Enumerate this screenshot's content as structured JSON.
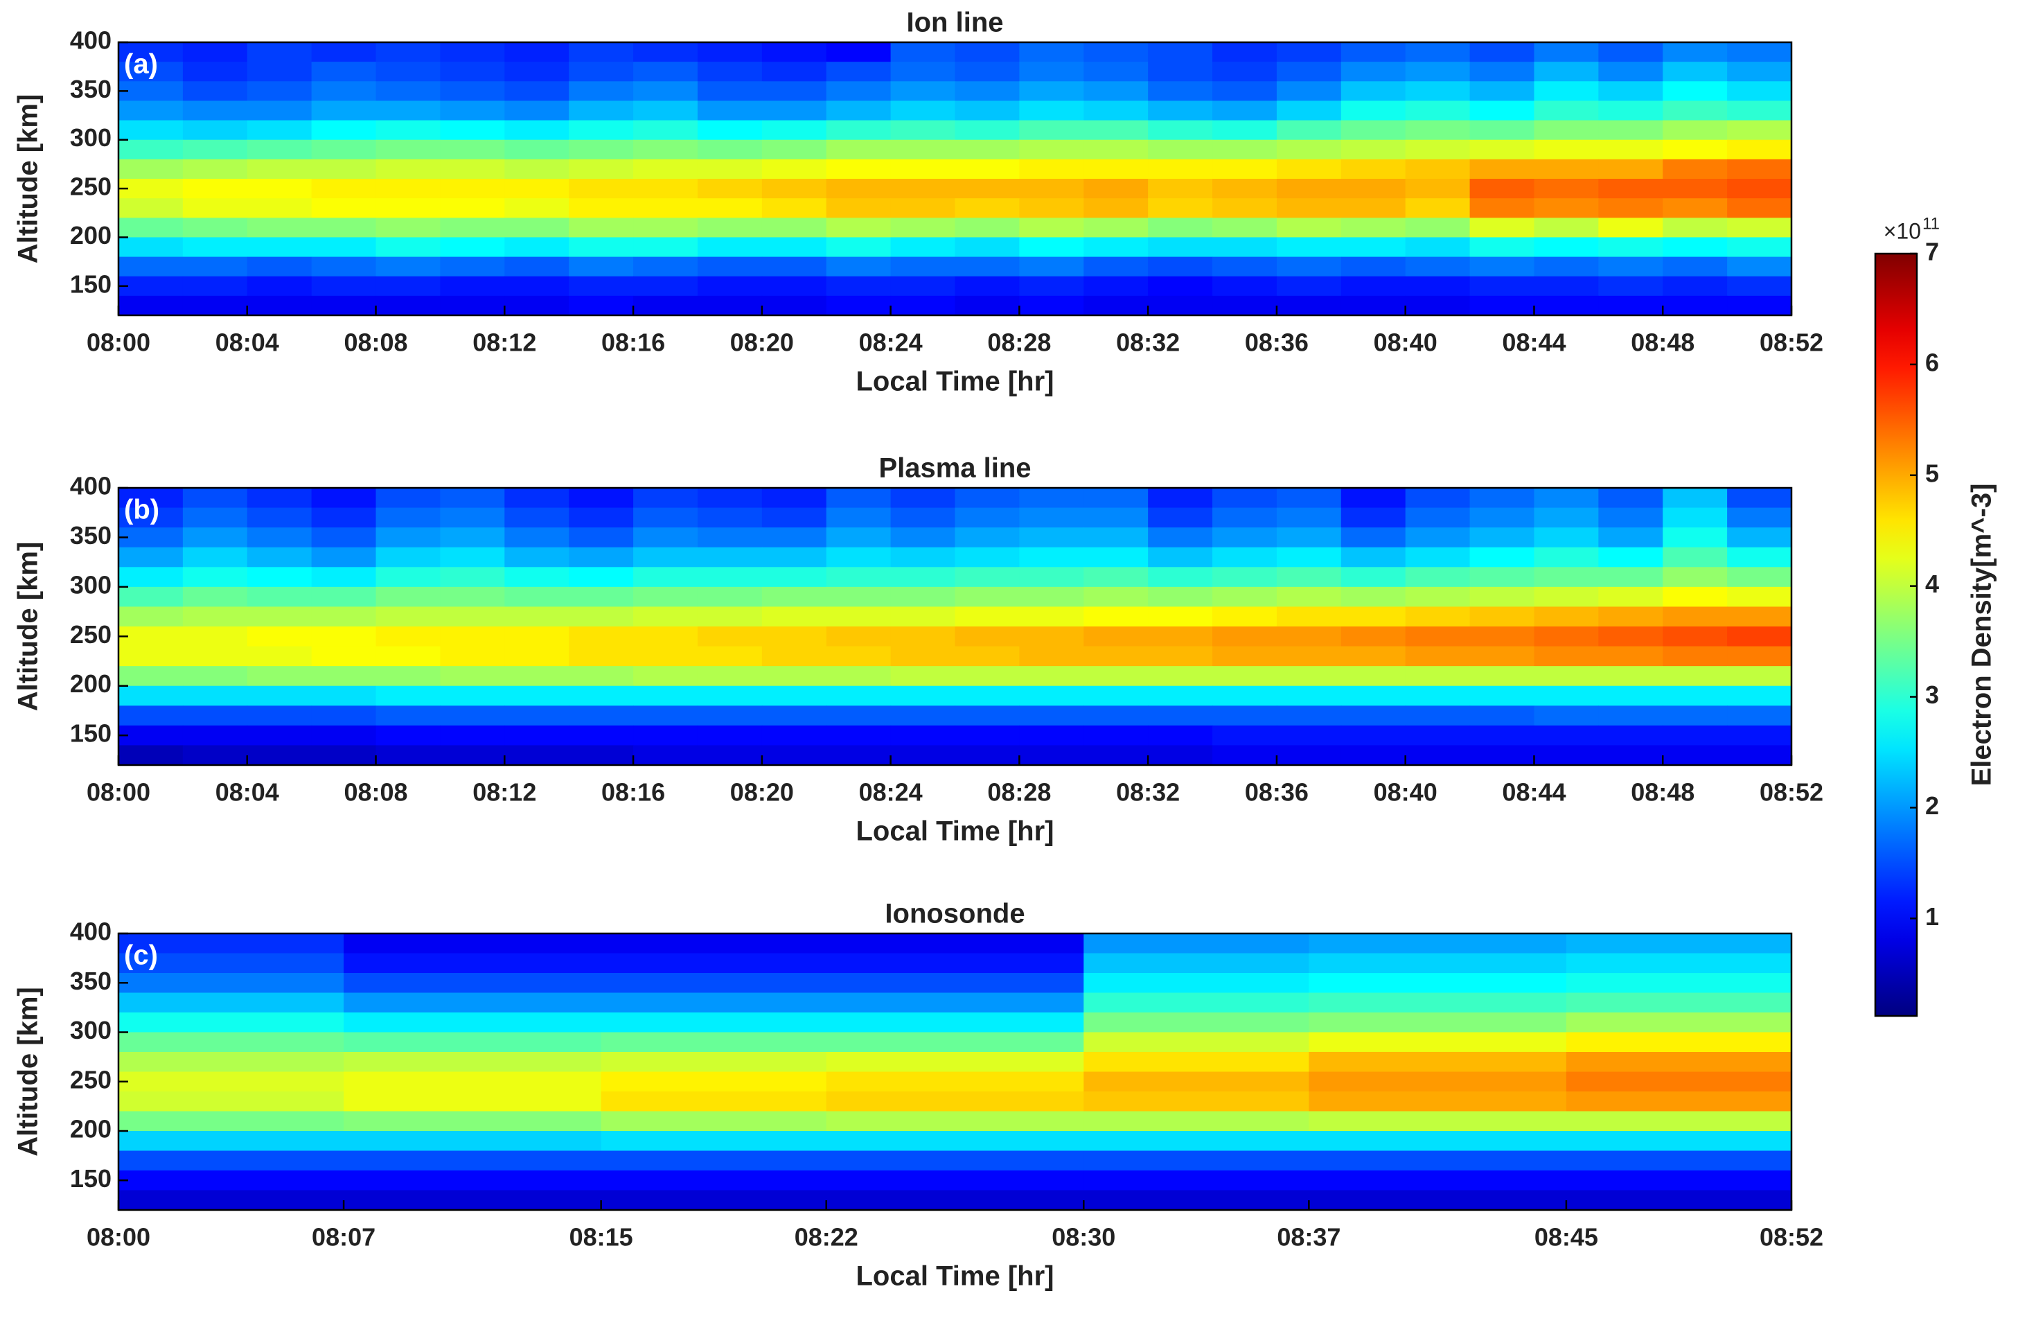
{
  "chart_data": [
    {
      "type": "heatmap",
      "title": "Ion line",
      "panel_label": "(a)",
      "xlabel": "Local Time [hr]",
      "ylabel": "Altitude [km]",
      "x": [
        "08:00",
        "08:02",
        "08:04",
        "08:06",
        "08:08",
        "08:10",
        "08:12",
        "08:14",
        "08:16",
        "08:18",
        "08:20",
        "08:22",
        "08:24",
        "08:26",
        "08:28",
        "08:30",
        "08:32",
        "08:34",
        "08:36",
        "08:38",
        "08:40",
        "08:42",
        "08:44",
        "08:46",
        "08:48",
        "08:50"
      ],
      "xlim": [
        "08:00",
        "08:52"
      ],
      "xticks": [
        "08:00",
        "08:04",
        "08:08",
        "08:12",
        "08:16",
        "08:20",
        "08:24",
        "08:28",
        "08:32",
        "08:36",
        "08:40",
        "08:44",
        "08:48",
        "08:52"
      ],
      "y": [
        390,
        370,
        350,
        330,
        310,
        290,
        270,
        250,
        230,
        210,
        190,
        170,
        150,
        130
      ],
      "ylim": [
        120,
        400
      ],
      "yticks": [
        150,
        200,
        250,
        300,
        350,
        400
      ],
      "values": [
        [
          1.3,
          1.2,
          1.4,
          1.3,
          1.4,
          1.3,
          1.2,
          1.4,
          1.3,
          1.2,
          1.1,
          1.0,
          1.6,
          1.5,
          1.7,
          1.6,
          1.5,
          1.3,
          1.4,
          1.6,
          1.7,
          1.5,
          1.8,
          1.6,
          1.9,
          1.8
        ],
        [
          1.5,
          1.3,
          1.4,
          1.6,
          1.5,
          1.4,
          1.3,
          1.5,
          1.6,
          1.4,
          1.3,
          1.5,
          1.7,
          1.6,
          1.8,
          1.7,
          1.5,
          1.4,
          1.6,
          1.9,
          2.0,
          1.8,
          2.2,
          1.9,
          2.3,
          2.1
        ],
        [
          1.7,
          1.5,
          1.6,
          1.8,
          1.7,
          1.6,
          1.5,
          1.8,
          1.9,
          1.6,
          1.6,
          1.8,
          2.0,
          1.9,
          2.1,
          2.0,
          1.7,
          1.6,
          1.9,
          2.3,
          2.4,
          2.2,
          2.6,
          2.4,
          2.7,
          2.5
        ],
        [
          2.0,
          1.9,
          1.9,
          2.1,
          2.1,
          2.0,
          1.9,
          2.2,
          2.3,
          2.0,
          2.0,
          2.2,
          2.4,
          2.3,
          2.5,
          2.4,
          2.2,
          2.1,
          2.4,
          2.8,
          2.9,
          2.7,
          3.0,
          2.9,
          3.1,
          3.0
        ],
        [
          2.5,
          2.4,
          2.5,
          2.7,
          2.8,
          2.7,
          2.6,
          2.8,
          2.9,
          2.7,
          2.8,
          3.0,
          3.1,
          3.0,
          3.2,
          3.2,
          3.0,
          2.9,
          3.2,
          3.4,
          3.5,
          3.4,
          3.6,
          3.6,
          3.8,
          3.9
        ],
        [
          3.1,
          3.2,
          3.3,
          3.4,
          3.5,
          3.5,
          3.4,
          3.5,
          3.6,
          3.5,
          3.6,
          3.8,
          3.8,
          3.8,
          3.9,
          3.9,
          3.8,
          3.8,
          3.9,
          4.0,
          4.1,
          4.2,
          4.3,
          4.3,
          4.4,
          4.5
        ],
        [
          3.8,
          3.9,
          4.0,
          4.0,
          4.1,
          4.1,
          4.0,
          4.1,
          4.2,
          4.2,
          4.3,
          4.4,
          4.4,
          4.4,
          4.5,
          4.5,
          4.5,
          4.5,
          4.6,
          4.7,
          4.8,
          5.0,
          5.0,
          5.0,
          5.3,
          5.4
        ],
        [
          4.3,
          4.4,
          4.4,
          4.5,
          4.5,
          4.5,
          4.5,
          4.6,
          4.6,
          4.7,
          4.8,
          4.9,
          4.9,
          4.9,
          4.9,
          5.0,
          4.8,
          4.9,
          5.0,
          5.0,
          4.9,
          5.5,
          5.4,
          5.5,
          5.5,
          5.6
        ],
        [
          4.1,
          4.3,
          4.3,
          4.4,
          4.4,
          4.4,
          4.3,
          4.5,
          4.5,
          4.5,
          4.6,
          4.8,
          4.8,
          4.7,
          4.8,
          4.9,
          4.7,
          4.8,
          4.9,
          4.9,
          4.7,
          5.3,
          5.2,
          5.3,
          5.2,
          5.4
        ],
        [
          3.4,
          3.5,
          3.6,
          3.6,
          3.7,
          3.6,
          3.6,
          3.8,
          3.8,
          3.7,
          3.7,
          3.9,
          3.8,
          3.7,
          3.9,
          3.8,
          3.6,
          3.7,
          3.9,
          3.8,
          3.7,
          4.2,
          4.0,
          4.3,
          4.0,
          4.1
        ],
        [
          2.5,
          2.6,
          2.6,
          2.6,
          2.8,
          2.7,
          2.6,
          2.8,
          2.8,
          2.6,
          2.6,
          2.8,
          2.6,
          2.5,
          2.7,
          2.6,
          2.5,
          2.5,
          2.6,
          2.6,
          2.5,
          2.8,
          2.7,
          2.8,
          2.7,
          2.8
        ],
        [
          1.7,
          1.7,
          1.6,
          1.7,
          1.8,
          1.7,
          1.6,
          1.8,
          1.7,
          1.6,
          1.6,
          1.8,
          1.7,
          1.7,
          1.8,
          1.6,
          1.5,
          1.6,
          1.7,
          1.6,
          1.7,
          1.8,
          1.7,
          1.8,
          1.7,
          1.9
        ],
        [
          1.2,
          1.2,
          1.1,
          1.2,
          1.2,
          1.1,
          1.1,
          1.2,
          1.2,
          1.1,
          1.1,
          1.2,
          1.2,
          1.1,
          1.2,
          1.1,
          1.0,
          1.1,
          1.2,
          1.1,
          1.1,
          1.2,
          1.2,
          1.3,
          1.2,
          1.3
        ],
        [
          0.9,
          0.9,
          0.9,
          0.9,
          0.9,
          0.9,
          0.9,
          1.0,
          0.9,
          0.9,
          0.9,
          1.0,
          1.0,
          0.9,
          1.0,
          0.9,
          0.9,
          0.9,
          0.9,
          0.9,
          0.9,
          1.0,
          1.0,
          1.0,
          1.0,
          1.0
        ]
      ]
    },
    {
      "type": "heatmap",
      "title": "Plasma line",
      "panel_label": "(b)",
      "xlabel": "Local Time [hr]",
      "ylabel": "Altitude [km]",
      "x": [
        "08:00",
        "08:02",
        "08:04",
        "08:06",
        "08:08",
        "08:10",
        "08:12",
        "08:14",
        "08:16",
        "08:18",
        "08:20",
        "08:22",
        "08:24",
        "08:26",
        "08:28",
        "08:30",
        "08:32",
        "08:34",
        "08:36",
        "08:38",
        "08:40",
        "08:42",
        "08:44",
        "08:46",
        "08:48",
        "08:50"
      ],
      "xlim": [
        "08:00",
        "08:52"
      ],
      "xticks": [
        "08:00",
        "08:04",
        "08:08",
        "08:12",
        "08:16",
        "08:20",
        "08:24",
        "08:28",
        "08:32",
        "08:36",
        "08:40",
        "08:44",
        "08:48",
        "08:52"
      ],
      "y": [
        390,
        370,
        350,
        330,
        310,
        290,
        270,
        250,
        230,
        210,
        190,
        170,
        150,
        130
      ],
      "ylim": [
        120,
        400
      ],
      "yticks": [
        150,
        200,
        250,
        300,
        350,
        400
      ],
      "values": [
        [
          1.2,
          1.5,
          1.3,
          1.1,
          1.5,
          1.6,
          1.3,
          1.1,
          1.4,
          1.3,
          1.2,
          1.6,
          1.4,
          1.6,
          1.7,
          1.7,
          1.2,
          1.5,
          1.6,
          1.1,
          1.5,
          1.7,
          1.9,
          1.6,
          2.3,
          1.5
        ],
        [
          1.4,
          1.7,
          1.5,
          1.3,
          1.7,
          1.8,
          1.5,
          1.3,
          1.6,
          1.5,
          1.4,
          1.8,
          1.6,
          1.8,
          1.9,
          1.9,
          1.4,
          1.7,
          1.8,
          1.3,
          1.7,
          1.9,
          2.1,
          1.8,
          2.5,
          1.8
        ],
        [
          1.7,
          2.0,
          1.8,
          1.6,
          2.0,
          2.1,
          1.8,
          1.6,
          1.9,
          1.8,
          1.8,
          2.1,
          1.9,
          2.1,
          2.2,
          2.2,
          1.8,
          2.0,
          2.1,
          1.7,
          2.0,
          2.2,
          2.4,
          2.1,
          2.8,
          2.2
        ],
        [
          2.1,
          2.4,
          2.2,
          2.0,
          2.4,
          2.5,
          2.2,
          2.1,
          2.3,
          2.3,
          2.3,
          2.5,
          2.4,
          2.5,
          2.6,
          2.6,
          2.3,
          2.5,
          2.6,
          2.3,
          2.5,
          2.7,
          2.9,
          2.7,
          3.2,
          2.8
        ],
        [
          2.6,
          2.8,
          2.7,
          2.6,
          2.9,
          3.0,
          2.8,
          2.7,
          2.9,
          2.9,
          2.9,
          3.0,
          3.0,
          3.1,
          3.1,
          3.2,
          3.0,
          3.1,
          3.2,
          3.0,
          3.2,
          3.3,
          3.4,
          3.4,
          3.7,
          3.5
        ],
        [
          3.2,
          3.4,
          3.3,
          3.3,
          3.5,
          3.5,
          3.4,
          3.4,
          3.5,
          3.5,
          3.6,
          3.6,
          3.6,
          3.7,
          3.7,
          3.8,
          3.7,
          3.8,
          3.9,
          3.8,
          3.9,
          4.0,
          4.1,
          4.2,
          4.4,
          4.3
        ],
        [
          3.8,
          3.9,
          3.9,
          3.9,
          4.0,
          4.0,
          4.0,
          4.0,
          4.1,
          4.1,
          4.2,
          4.2,
          4.2,
          4.3,
          4.3,
          4.4,
          4.4,
          4.5,
          4.6,
          4.6,
          4.7,
          4.8,
          4.9,
          5.0,
          5.1,
          5.1
        ],
        [
          4.3,
          4.3,
          4.4,
          4.4,
          4.5,
          4.5,
          4.5,
          4.6,
          4.6,
          4.7,
          4.7,
          4.8,
          4.8,
          4.9,
          4.9,
          5.0,
          5.0,
          5.1,
          5.1,
          5.2,
          5.3,
          5.3,
          5.4,
          5.5,
          5.6,
          5.7
        ],
        [
          4.3,
          4.3,
          4.3,
          4.4,
          4.4,
          4.5,
          4.5,
          4.6,
          4.6,
          4.6,
          4.7,
          4.7,
          4.8,
          4.8,
          4.9,
          4.9,
          4.9,
          5.0,
          5.0,
          5.0,
          5.1,
          5.1,
          5.2,
          5.2,
          5.3,
          5.3
        ],
        [
          3.6,
          3.6,
          3.7,
          3.7,
          3.7,
          3.8,
          3.8,
          3.8,
          3.9,
          3.9,
          3.9,
          3.9,
          4.0,
          4.0,
          4.0,
          4.0,
          4.0,
          4.0,
          4.0,
          4.0,
          4.0,
          4.0,
          4.0,
          4.0,
          4.0,
          4.0
        ],
        [
          2.5,
          2.5,
          2.5,
          2.5,
          2.6,
          2.6,
          2.6,
          2.6,
          2.6,
          2.6,
          2.6,
          2.6,
          2.6,
          2.6,
          2.6,
          2.6,
          2.6,
          2.6,
          2.6,
          2.6,
          2.6,
          2.6,
          2.6,
          2.6,
          2.6,
          2.6
        ],
        [
          1.5,
          1.5,
          1.5,
          1.5,
          1.6,
          1.6,
          1.6,
          1.6,
          1.6,
          1.6,
          1.6,
          1.6,
          1.6,
          1.6,
          1.6,
          1.6,
          1.6,
          1.6,
          1.6,
          1.6,
          1.6,
          1.6,
          1.7,
          1.7,
          1.7,
          1.7
        ],
        [
          0.9,
          0.9,
          0.9,
          0.9,
          1.0,
          1.0,
          1.0,
          1.0,
          1.0,
          1.0,
          1.0,
          1.0,
          1.0,
          1.0,
          1.0,
          1.0,
          1.0,
          1.1,
          1.1,
          1.1,
          1.1,
          1.1,
          1.1,
          1.1,
          1.1,
          1.1
        ],
        [
          0.5,
          0.6,
          0.6,
          0.6,
          0.7,
          0.7,
          0.7,
          0.7,
          0.8,
          0.8,
          0.8,
          0.8,
          0.8,
          0.8,
          0.8,
          0.8,
          0.8,
          0.9,
          0.9,
          0.9,
          0.9,
          0.9,
          0.9,
          0.9,
          0.9,
          0.9
        ]
      ]
    },
    {
      "type": "heatmap",
      "title": "Ionosonde",
      "panel_label": "(c)",
      "xlabel": "Local Time [hr]",
      "ylabel": "Altitude [km]",
      "x": [
        "08:00",
        "08:07",
        "08:15",
        "08:22",
        "08:30",
        "08:37",
        "08:45"
      ],
      "xlim": [
        "08:00",
        "08:52"
      ],
      "xticks": [
        "08:00",
        "08:07",
        "08:15",
        "08:22",
        "08:30",
        "08:37",
        "08:45",
        "08:52"
      ],
      "y": [
        390,
        370,
        350,
        330,
        310,
        290,
        270,
        250,
        230,
        210,
        190,
        170,
        150,
        130
      ],
      "ylim": [
        120,
        400
      ],
      "yticks": [
        150,
        200,
        250,
        300,
        350,
        400
      ],
      "values": [
        [
          1.3,
          0.9,
          0.9,
          0.9,
          2.0,
          2.1,
          2.2
        ],
        [
          1.5,
          1.1,
          1.1,
          1.1,
          2.3,
          2.4,
          2.5
        ],
        [
          1.8,
          1.5,
          1.5,
          1.5,
          2.6,
          2.7,
          2.8
        ],
        [
          2.3,
          2.0,
          2.0,
          2.0,
          3.0,
          3.1,
          3.2
        ],
        [
          2.8,
          2.6,
          2.6,
          2.6,
          3.5,
          3.6,
          3.8
        ],
        [
          3.4,
          3.3,
          3.4,
          3.4,
          4.1,
          4.3,
          4.5
        ],
        [
          3.9,
          4.0,
          4.1,
          4.2,
          4.6,
          4.9,
          5.1
        ],
        [
          4.2,
          4.3,
          4.5,
          4.6,
          4.9,
          5.1,
          5.3
        ],
        [
          4.1,
          4.3,
          4.6,
          4.7,
          4.8,
          5.0,
          5.1
        ],
        [
          3.5,
          3.6,
          3.8,
          3.9,
          3.9,
          4.0,
          4.0
        ],
        [
          2.4,
          2.4,
          2.5,
          2.5,
          2.5,
          2.5,
          2.5
        ],
        [
          1.5,
          1.5,
          1.5,
          1.5,
          1.5,
          1.5,
          1.5
        ],
        [
          1.0,
          1.0,
          1.0,
          1.0,
          1.0,
          1.0,
          1.0
        ],
        [
          0.7,
          0.7,
          0.7,
          0.7,
          0.7,
          0.7,
          0.7
        ]
      ]
    }
  ],
  "colorbar": {
    "label": "Electron Density[m^-3]",
    "multiplier": "×10",
    "exponent": 11,
    "colormap": "jet",
    "clim": [
      0.12,
      7
    ],
    "ticks": [
      1,
      2,
      3,
      4,
      5,
      6,
      7
    ]
  }
}
